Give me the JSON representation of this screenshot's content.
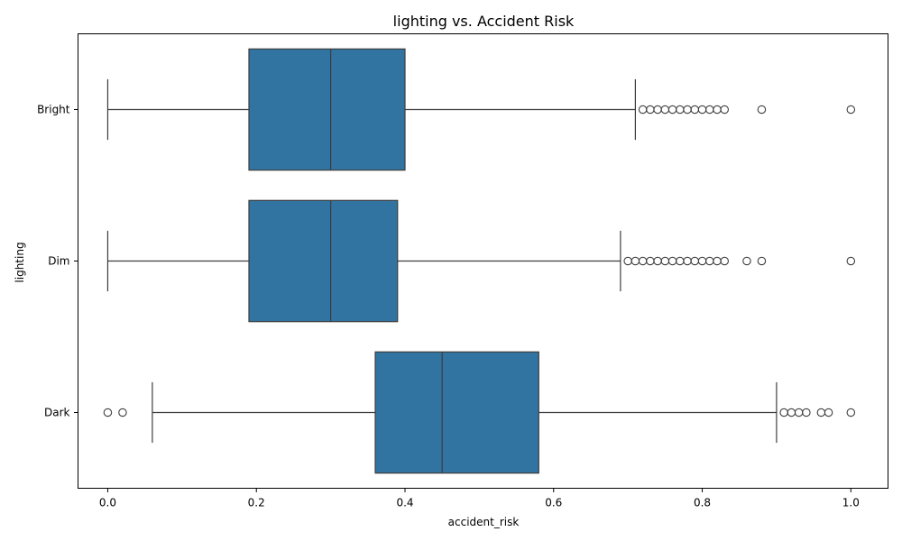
{
  "chart_data": {
    "type": "boxplot",
    "title": "lighting vs. Accident Risk",
    "xlabel": "accident_risk",
    "ylabel": "lighting",
    "xlim": [
      -0.04,
      1.05
    ],
    "xticks": [
      0.0,
      0.2,
      0.4,
      0.6,
      0.8,
      1.0
    ],
    "xtick_labels": [
      "0.0",
      "0.2",
      "0.4",
      "0.6",
      "0.8",
      "1.0"
    ],
    "orientation": "horizontal",
    "grid": false,
    "box_color": "#3274a1",
    "categories": [
      "Bright",
      "Dim",
      "Dark"
    ],
    "series": [
      {
        "category": "Bright",
        "whisker_low": 0.0,
        "q1": 0.19,
        "median": 0.3,
        "q3": 0.4,
        "whisker_high": 0.71,
        "outliers": [
          0.72,
          0.73,
          0.74,
          0.75,
          0.76,
          0.77,
          0.78,
          0.79,
          0.8,
          0.81,
          0.82,
          0.83,
          0.88,
          1.0
        ]
      },
      {
        "category": "Dim",
        "whisker_low": 0.0,
        "q1": 0.19,
        "median": 0.3,
        "q3": 0.39,
        "whisker_high": 0.69,
        "outliers": [
          0.7,
          0.71,
          0.72,
          0.73,
          0.74,
          0.75,
          0.76,
          0.77,
          0.78,
          0.79,
          0.8,
          0.81,
          0.82,
          0.83,
          0.86,
          0.88,
          1.0
        ]
      },
      {
        "category": "Dark",
        "whisker_low": 0.06,
        "q1": 0.36,
        "median": 0.45,
        "q3": 0.58,
        "whisker_high": 0.9,
        "outliers": [
          0.0,
          0.02,
          0.91,
          0.92,
          0.93,
          0.94,
          0.96,
          0.97,
          1.0
        ]
      }
    ]
  }
}
